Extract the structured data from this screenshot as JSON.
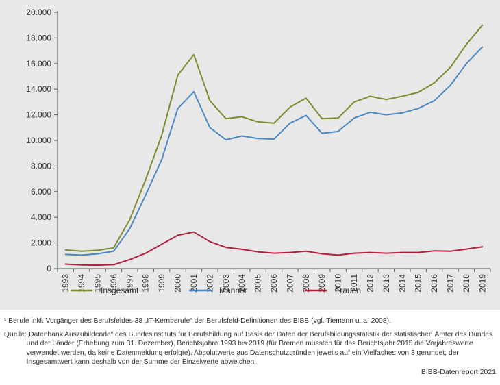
{
  "chart_data": {
    "type": "line",
    "x": [
      "1993",
      "1994",
      "1995",
      "1996",
      "1997",
      "1998",
      "1999",
      "2000",
      "2001",
      "2002",
      "2003",
      "2004",
      "2005",
      "2006",
      "2007",
      "2008",
      "2009",
      "2010",
      "2011",
      "2012",
      "2013",
      "2014",
      "2015",
      "2016",
      "2017",
      "2018",
      "2019"
    ],
    "ylim": [
      0,
      20000
    ],
    "yticks": [
      0,
      2000,
      4000,
      6000,
      8000,
      10000,
      12000,
      14000,
      16000,
      18000,
      20000
    ],
    "ytick_labels": [
      "0",
      "2.000",
      "4.000",
      "6.000",
      "8.000",
      "10.000",
      "12.000",
      "14.000",
      "16.000",
      "18.000",
      "20.000"
    ],
    "grid": false,
    "legend_position": "bottom",
    "series": [
      {
        "name": "Insgesamt",
        "color": "#7b8c2e",
        "values": [
          1450,
          1350,
          1420,
          1620,
          3800,
          6950,
          10400,
          15100,
          16700,
          13100,
          11700,
          11850,
          11450,
          11350,
          12600,
          13300,
          11700,
          11750,
          13000,
          13450,
          13200,
          13450,
          13750,
          14500,
          15700,
          17500,
          19000
        ]
      },
      {
        "name": "Männer",
        "color": "#4a87c5",
        "values": [
          1100,
          1050,
          1150,
          1350,
          3100,
          5750,
          8500,
          12500,
          13800,
          11000,
          10050,
          10350,
          10150,
          10100,
          11350,
          11950,
          10550,
          10700,
          11750,
          12200,
          12000,
          12150,
          12500,
          13100,
          14300,
          16000,
          17300
        ]
      },
      {
        "name": "Frauen",
        "color": "#b21f3d",
        "values": [
          350,
          280,
          270,
          300,
          700,
          1200,
          1900,
          2600,
          2850,
          2100,
          1650,
          1500,
          1300,
          1200,
          1250,
          1350,
          1150,
          1050,
          1200,
          1250,
          1200,
          1250,
          1250,
          1380,
          1350,
          1520,
          1700
        ]
      }
    ]
  },
  "notes": {
    "footnote": "¹ Berufe inkl. Vorgänger des Berufsfeldes 38 „IT-Kernberufe“ der Berufsfeld-Definitionen des BIBB (vgl. Tiemann u. a. 2008).",
    "source_label": "Quelle:",
    "source_text": "„Datenbank Auszubildende“ des Bundesinstituts für Berufsbildung auf Basis der Daten der Berufsbildungsstatistik der statistischen Ämter des Bundes und der Länder (Erhebung zum 31. Dezember), Berichtsjahre 1993 bis 2019 (für Bremen mussten für das Berichtsjahr 2015 die Vorjahreswerte verwendet werden, da keine Datenmeldung erfolgte). Absolutwerte aus Datenschutzgründen jeweils auf ein Vielfaches von 3 gerundet; der Insgesamtwert kann deshalb von der Summe der Einzelwerte abweichen.",
    "brand": "BIBB-Datenreport 2021"
  }
}
